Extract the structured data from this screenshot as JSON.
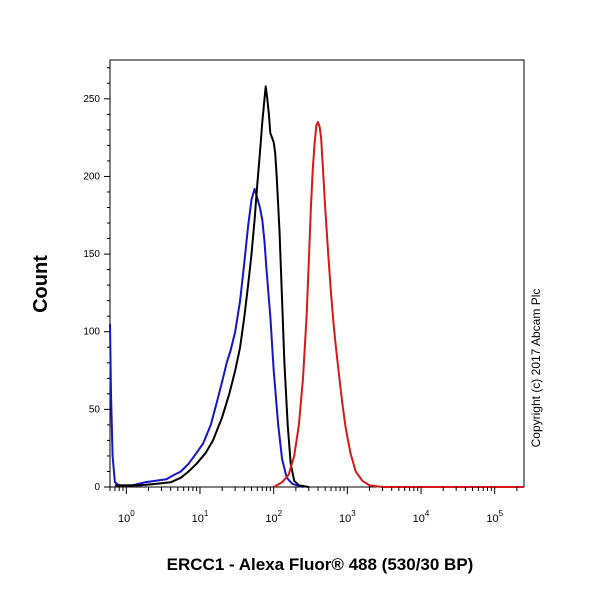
{
  "chart_data": {
    "type": "line",
    "title": "",
    "xlabel": "ERCC1 - Alexa Fluor® 488 (530/30 BP)",
    "ylabel": "Count",
    "x_scale": "log",
    "xlim": [
      0.6,
      250000
    ],
    "ylim": [
      0,
      275
    ],
    "x_ticks": [
      {
        "value": 1,
        "base": "10",
        "exp": "0"
      },
      {
        "value": 10,
        "base": "10",
        "exp": "1"
      },
      {
        "value": 100,
        "base": "10",
        "exp": "2"
      },
      {
        "value": 1000,
        "base": "10",
        "exp": "3"
      },
      {
        "value": 10000,
        "base": "10",
        "exp": "4"
      },
      {
        "value": 100000,
        "base": "10",
        "exp": "5"
      }
    ],
    "y_ticks": [
      0,
      50,
      100,
      150,
      200,
      250
    ],
    "grid": false,
    "series": [
      {
        "color": "#1515c8",
        "points": [
          [
            0.6,
            105
          ],
          [
            0.62,
            60
          ],
          [
            0.65,
            20
          ],
          [
            0.7,
            3
          ],
          [
            0.8,
            1
          ],
          [
            1.2,
            1
          ],
          [
            1.8,
            3
          ],
          [
            2.5,
            4
          ],
          [
            3.5,
            5
          ],
          [
            4.5,
            8
          ],
          [
            5.5,
            10
          ],
          [
            7,
            15
          ],
          [
            9,
            22
          ],
          [
            11,
            28
          ],
          [
            14,
            40
          ],
          [
            17,
            55
          ],
          [
            20,
            68
          ],
          [
            23,
            80
          ],
          [
            26,
            88
          ],
          [
            30,
            100
          ],
          [
            35,
            120
          ],
          [
            40,
            145
          ],
          [
            45,
            168
          ],
          [
            50,
            185
          ],
          [
            55,
            192
          ],
          [
            60,
            186
          ],
          [
            65,
            180
          ],
          [
            70,
            172
          ],
          [
            75,
            158
          ],
          [
            80,
            140
          ],
          [
            90,
            110
          ],
          [
            100,
            75
          ],
          [
            115,
            40
          ],
          [
            130,
            18
          ],
          [
            150,
            6
          ],
          [
            180,
            2
          ],
          [
            250,
            0
          ]
        ]
      },
      {
        "color": "#000000",
        "points": [
          [
            0.7,
            1
          ],
          [
            1.5,
            1
          ],
          [
            2.5,
            2
          ],
          [
            4,
            3
          ],
          [
            5.5,
            6
          ],
          [
            7,
            10
          ],
          [
            9,
            15
          ],
          [
            12,
            22
          ],
          [
            15,
            30
          ],
          [
            20,
            45
          ],
          [
            25,
            60
          ],
          [
            30,
            75
          ],
          [
            35,
            90
          ],
          [
            40,
            110
          ],
          [
            45,
            130
          ],
          [
            50,
            150
          ],
          [
            55,
            172
          ],
          [
            60,
            195
          ],
          [
            65,
            215
          ],
          [
            70,
            235
          ],
          [
            75,
            250
          ],
          [
            78,
            258
          ],
          [
            82,
            250
          ],
          [
            86,
            240
          ],
          [
            90,
            228
          ],
          [
            95,
            225
          ],
          [
            100,
            222
          ],
          [
            105,
            215
          ],
          [
            110,
            200
          ],
          [
            120,
            165
          ],
          [
            130,
            120
          ],
          [
            140,
            80
          ],
          [
            155,
            40
          ],
          [
            170,
            15
          ],
          [
            190,
            4
          ],
          [
            220,
            1
          ],
          [
            300,
            0
          ]
        ]
      },
      {
        "color": "#d81818",
        "points": [
          [
            100,
            0
          ],
          [
            130,
            3
          ],
          [
            160,
            8
          ],
          [
            190,
            20
          ],
          [
            220,
            40
          ],
          [
            250,
            70
          ],
          [
            280,
            110
          ],
          [
            300,
            145
          ],
          [
            320,
            180
          ],
          [
            340,
            205
          ],
          [
            360,
            222
          ],
          [
            380,
            233
          ],
          [
            400,
            235
          ],
          [
            420,
            232
          ],
          [
            440,
            225
          ],
          [
            460,
            210
          ],
          [
            500,
            180
          ],
          [
            550,
            150
          ],
          [
            600,
            125
          ],
          [
            650,
            105
          ],
          [
            700,
            90
          ],
          [
            780,
            70
          ],
          [
            850,
            55
          ],
          [
            950,
            38
          ],
          [
            1100,
            22
          ],
          [
            1300,
            10
          ],
          [
            1600,
            4
          ],
          [
            2000,
            1
          ],
          [
            3000,
            0
          ],
          [
            250000,
            0
          ]
        ]
      }
    ]
  },
  "y_axis_label": "Count",
  "x_axis_label": "ERCC1 - Alexa Fluor® 488 (530/30 BP)",
  "copyright": "Copyright (c) 2017 Abcam Plc"
}
